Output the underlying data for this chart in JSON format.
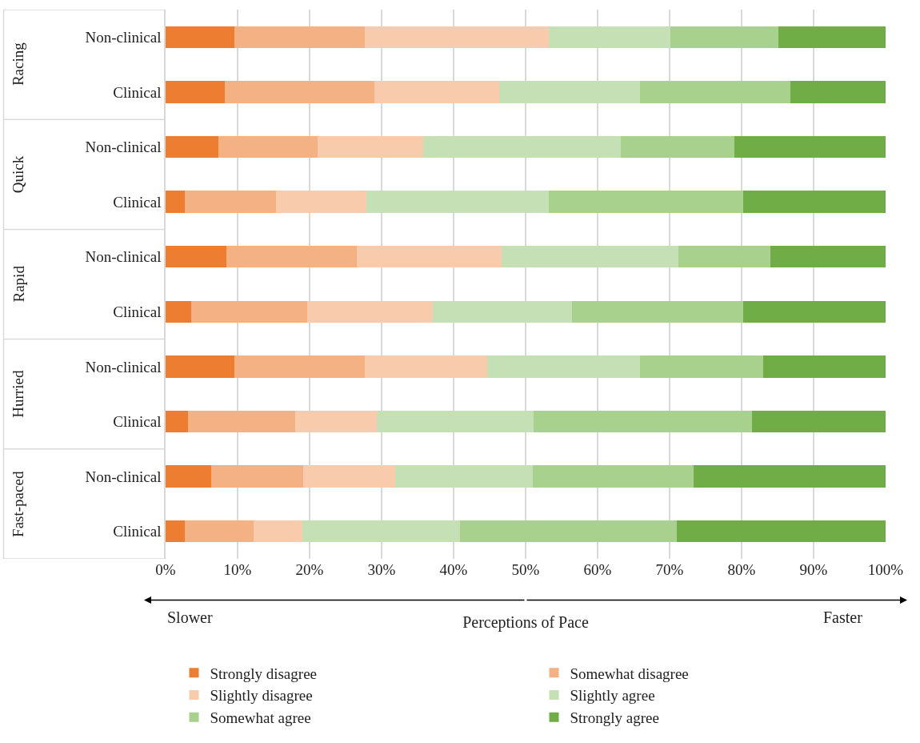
{
  "chart_data": {
    "type": "bar",
    "orientation": "horizontal",
    "stacked": true,
    "xlabel": "Perceptions of Pace",
    "categories": [
      "Non-clinical",
      "Clinical",
      "Non-clinical",
      "Clinical",
      "Non-clinical",
      "Clinical",
      "Non-clinical",
      "Clinical",
      "Non-clinical",
      "Clinical"
    ],
    "annotations": [
      "Racing",
      "Quick",
      "Rapid",
      "Hurried",
      "Fast-paced",
      "Slower",
      "Faster"
    ],
    "series": [
      {
        "name": "Strongly disagree",
        "color": "#ed7d31",
        "values": [
          9.6,
          8.2,
          7.3,
          2.7,
          8.4,
          3.6,
          9.6,
          3.1,
          6.3,
          2.7
        ]
      },
      {
        "name": "Somewhat disagree",
        "color": "#f4b183",
        "values": [
          18.1,
          20.8,
          13.8,
          12.6,
          18.2,
          16.1,
          18.1,
          14.9,
          12.8,
          9.5
        ]
      },
      {
        "name": "Slightly disagree",
        "color": "#f8cbad",
        "values": [
          25.5,
          17.3,
          14.7,
          12.6,
          20.1,
          17.4,
          17.0,
          11.3,
          12.8,
          6.8
        ]
      },
      {
        "name": "Slightly agree",
        "color": "#c5e0b4",
        "values": [
          16.9,
          19.6,
          27.4,
          25.3,
          24.5,
          19.3,
          21.2,
          21.8,
          19.1,
          21.9
        ]
      },
      {
        "name": "Somewhat agree",
        "color": "#a9d18e",
        "values": [
          15.0,
          20.9,
          15.8,
          27.0,
          12.8,
          23.8,
          17.1,
          30.3,
          22.3,
          30.1
        ]
      },
      {
        "name": "Strongly agree",
        "color": "#70ad47",
        "values": [
          14.9,
          13.2,
          21.0,
          19.8,
          16.0,
          19.8,
          17.0,
          18.6,
          26.7,
          29.0
        ]
      }
    ],
    "xlim": [
      0,
      100
    ],
    "xticks": [
      {
        "value": 0,
        "label": "0%"
      },
      {
        "value": 10,
        "label": "10%"
      },
      {
        "value": 20,
        "label": "20%"
      },
      {
        "value": 30,
        "label": "30%"
      },
      {
        "value": 40,
        "label": "40%"
      },
      {
        "value": 50,
        "label": "50%"
      },
      {
        "value": 60,
        "label": "60%"
      },
      {
        "value": 70,
        "label": "70%"
      },
      {
        "value": 80,
        "label": "80%"
      },
      {
        "value": 90,
        "label": "90%"
      },
      {
        "value": 100,
        "label": "100%"
      }
    ],
    "grid": "x",
    "legend": "bottom"
  }
}
